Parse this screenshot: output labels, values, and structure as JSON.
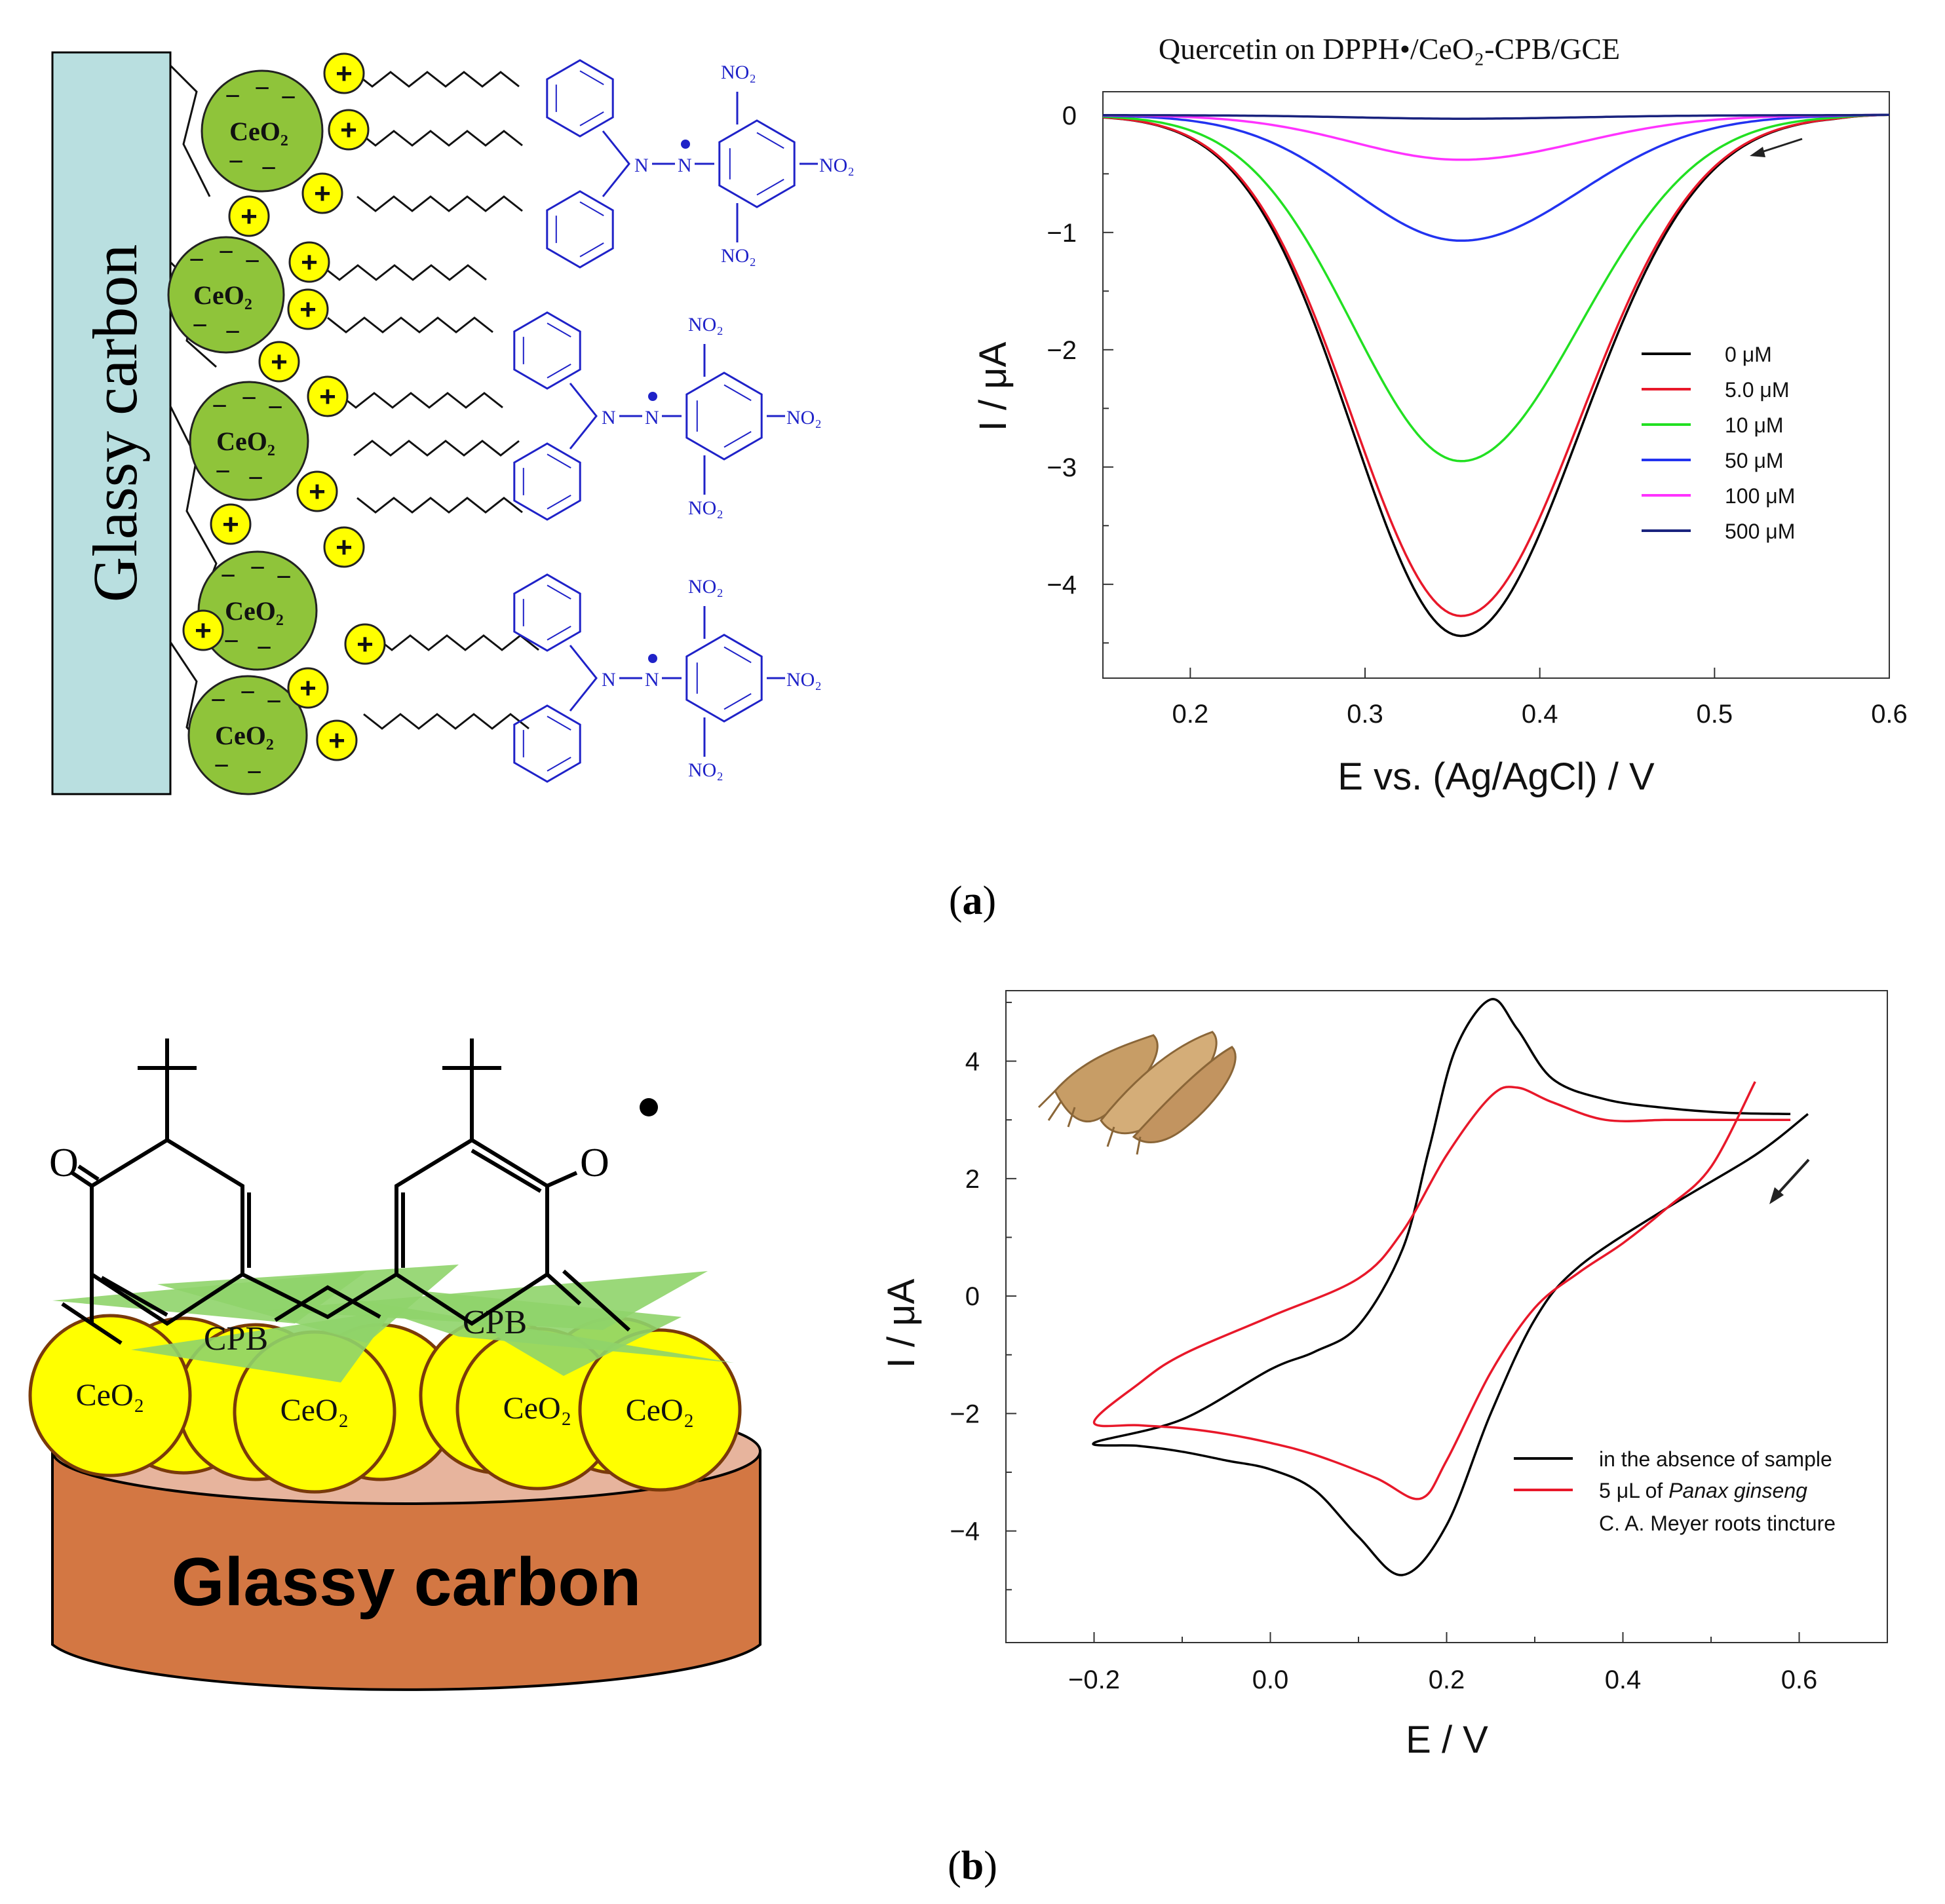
{
  "panel_a": {
    "label": "a",
    "scheme": {
      "electrode_label": "Glassy carbon",
      "particle_label": "CeO₂",
      "positive_sign": "+",
      "negative_sign": "−",
      "nitro_group": "NO₂",
      "amine_n": "N"
    }
  },
  "panel_b": {
    "label": "b",
    "scheme": {
      "electrode_label": "Glassy carbon",
      "particle_label": "CeO₂",
      "surfactant_label": "CPB",
      "oxygen_label": "O"
    }
  },
  "colors": {
    "black": "#000000",
    "red": "#e8182a",
    "green": "#22e022",
    "blue": "#2233f0",
    "magenta": "#ff33ff",
    "navy": "#1a237e",
    "chem_blue": "#1f22c8"
  },
  "chart_data": [
    {
      "type": "line",
      "title": "Quercetin on DPPH•/CeO₂-CPB/GCE",
      "xlabel": "E vs. (Ag/AgCl) / V",
      "ylabel": "I / μA",
      "xlim": [
        0.15,
        0.6
      ],
      "ylim": [
        -4.8,
        0.2
      ],
      "xticks": [
        0.2,
        0.3,
        0.4,
        0.5,
        0.6
      ],
      "yticks": [
        0,
        -1,
        -2,
        -3,
        -4
      ],
      "xtick_labels": [
        "0.2",
        "0.3",
        "0.4",
        "0.5",
        "0.6"
      ],
      "ytick_labels": [
        "0",
        "−1",
        "−2",
        "−3",
        "−4"
      ],
      "legend_position": "right",
      "scan_direction": "arrow from 0.6 V toward lower potential",
      "peak_potential": 0.355,
      "series": [
        {
          "name": "0 μM",
          "color": "#000000",
          "peak": -4.44
        },
        {
          "name": "5.0 μM",
          "color": "#e8182a",
          "peak": -4.27
        },
        {
          "name": "10 μM",
          "color": "#22e022",
          "peak": -2.95
        },
        {
          "name": "50 μM",
          "color": "#2233f0",
          "peak": -1.07
        },
        {
          "name": "100 μM",
          "color": "#ff33ff",
          "peak": -0.38
        },
        {
          "name": "500 μM",
          "color": "#1a237e",
          "peak": -0.03
        }
      ]
    },
    {
      "type": "line",
      "title": "",
      "xlabel": "E / V",
      "ylabel": "I / μA",
      "xlim": [
        -0.3,
        0.7
      ],
      "ylim": [
        -5.9,
        5.2
      ],
      "xticks": [
        -0.2,
        0.0,
        0.2,
        0.4,
        0.6
      ],
      "yticks": [
        4,
        2,
        0,
        -2,
        -4
      ],
      "xtick_labels": [
        "−0.2",
        "0.0",
        "0.2",
        "0.4",
        "0.6"
      ],
      "ytick_labels": [
        "4",
        "2",
        "0",
        "−2",
        "−4"
      ],
      "legend_position": "bottom-right",
      "scan_direction": "arrow from 0.6 V toward lower potential",
      "series": [
        {
          "name": "in the absence of sample",
          "color": "#000000",
          "x": [
            0.61,
            0.55,
            0.45,
            0.35,
            0.3,
            0.25,
            0.2,
            0.15,
            0.1,
            0.05,
            0.0,
            -0.05,
            -0.1,
            -0.15,
            -0.2,
            -0.1,
            0.0,
            0.05,
            0.1,
            0.15,
            0.18,
            0.21,
            0.25,
            0.28,
            0.32,
            0.38,
            0.45,
            0.52,
            0.59
          ],
          "y": [
            3.1,
            2.4,
            1.5,
            0.5,
            -0.4,
            -2.0,
            -3.9,
            -4.75,
            -4.1,
            -3.3,
            -2.95,
            -2.8,
            -2.65,
            -2.55,
            -2.5,
            -2.1,
            -1.25,
            -0.95,
            -0.5,
            0.8,
            2.5,
            4.2,
            5.05,
            4.55,
            3.7,
            3.35,
            3.2,
            3.12,
            3.1
          ]
        },
        {
          "name": "5 μL of Panax ginseng C. A. Meyer roots tincture",
          "color": "#e8182a",
          "x": [
            0.55,
            0.5,
            0.45,
            0.4,
            0.35,
            0.3,
            0.25,
            0.2,
            0.17,
            0.12,
            0.05,
            0.0,
            -0.05,
            -0.1,
            -0.15,
            -0.2,
            -0.15,
            -0.1,
            0.0,
            0.1,
            0.15,
            0.2,
            0.25,
            0.28,
            0.32,
            0.38,
            0.45,
            0.52,
            0.59
          ],
          "y": [
            3.65,
            2.2,
            1.5,
            0.9,
            0.4,
            -0.2,
            -1.3,
            -2.8,
            -3.45,
            -3.1,
            -2.7,
            -2.5,
            -2.35,
            -2.25,
            -2.2,
            -2.15,
            -1.5,
            -1.0,
            -0.35,
            0.3,
            1.1,
            2.4,
            3.4,
            3.55,
            3.3,
            3.0,
            3.0,
            3.0,
            3.0
          ]
        }
      ]
    }
  ]
}
